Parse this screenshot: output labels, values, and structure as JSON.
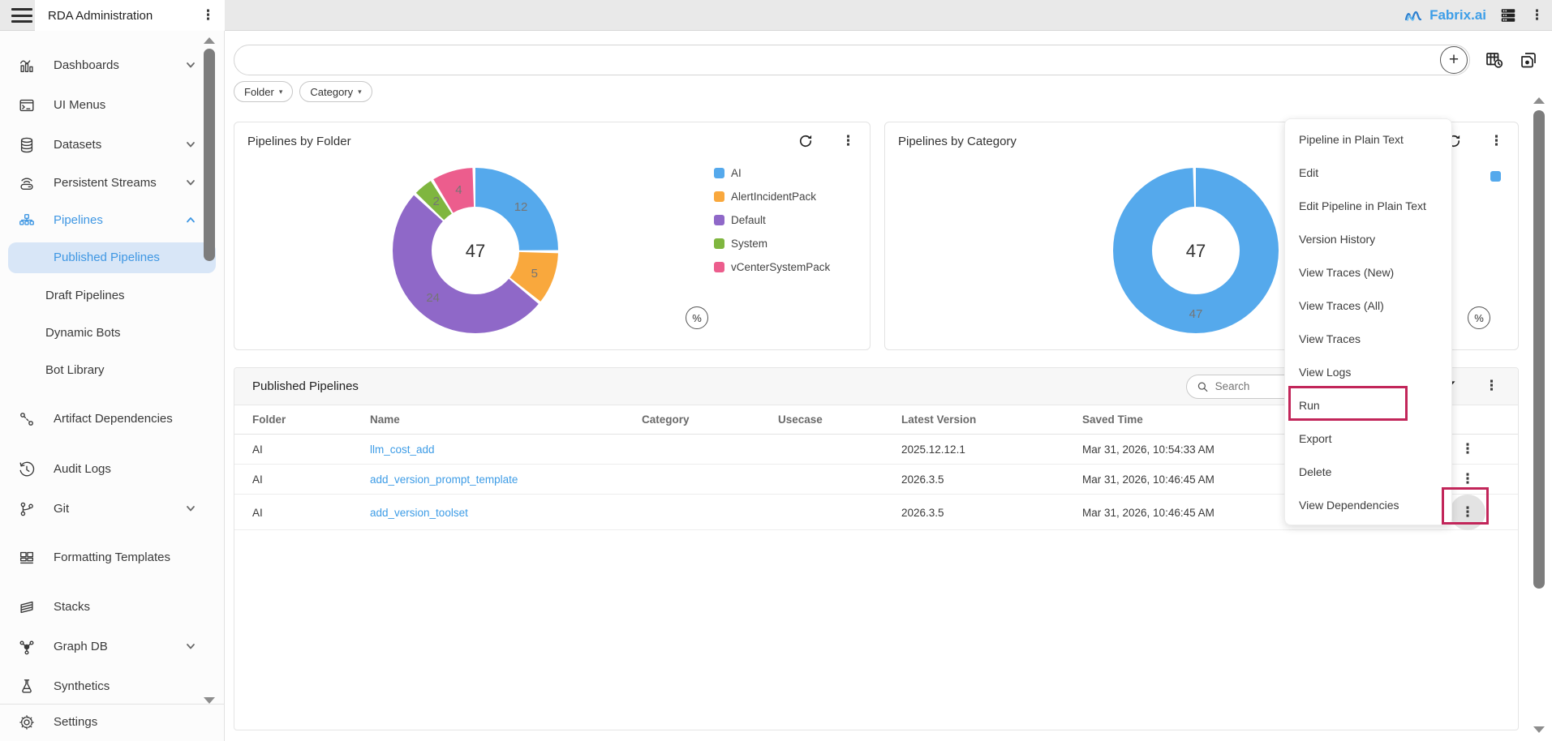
{
  "topbar": {
    "title": "RDA Administration",
    "brand": "Fabrix.ai"
  },
  "sidebar": {
    "items": [
      {
        "label": "Dashboards",
        "chevron": "down"
      },
      {
        "label": "UI Menus"
      },
      {
        "label": "Datasets",
        "chevron": "down"
      },
      {
        "label": "Persistent Streams",
        "chevron": "down"
      },
      {
        "label": "Pipelines",
        "chevron": "up",
        "expanded": true
      },
      {
        "label": "Published Pipelines",
        "child": true,
        "active": true
      },
      {
        "label": "Draft Pipelines",
        "child": true
      },
      {
        "label": "Dynamic Bots",
        "child": true
      },
      {
        "label": "Bot Library",
        "child": true
      },
      {
        "label": "Artifact Dependencies"
      },
      {
        "label": "Audit Logs"
      },
      {
        "label": "Git",
        "chevron": "down"
      },
      {
        "label": "Formatting Templates"
      },
      {
        "label": "Stacks"
      },
      {
        "label": "Graph DB",
        "chevron": "down"
      },
      {
        "label": "Synthetics"
      },
      {
        "label": "Settings"
      }
    ]
  },
  "search": {
    "value": "",
    "placeholder": "",
    "add_button": "+"
  },
  "filters": {
    "chips": [
      "Folder",
      "Category"
    ]
  },
  "chart_data": [
    {
      "type": "donut",
      "title": "Pipelines by Folder",
      "total": 47,
      "center_label": "47",
      "legend_position": "right",
      "unit_toggle": "%",
      "segments": [
        {
          "label": "AI",
          "value": 12,
          "color": "#55a9ec"
        },
        {
          "label": "AlertIncidentPack",
          "value": 5,
          "color": "#f9a83d"
        },
        {
          "label": "Default",
          "value": 24,
          "color": "#8f68c8"
        },
        {
          "label": "System",
          "value": 2,
          "color": "#7fb63f"
        },
        {
          "label": "vCenterSystemPack",
          "value": 4,
          "color": "#ec5d8d"
        }
      ]
    },
    {
      "type": "donut",
      "title": "Pipelines by Category",
      "total": 47,
      "center_label": "47",
      "legend_position": "right",
      "unit_toggle": "%",
      "segments": [
        {
          "label": "",
          "value": 47,
          "color": "#55a9ec"
        }
      ]
    }
  ],
  "table": {
    "title": "Published Pipelines",
    "search_placeholder": "Search",
    "columns": [
      "Folder",
      "Name",
      "Category",
      "Usecase",
      "Latest Version",
      "Saved Time"
    ],
    "rows": [
      {
        "folder": "AI",
        "name": "llm_cost_add",
        "category": "",
        "usecase": "",
        "latest_version": "2025.12.12.1",
        "saved_time": "Mar 31, 2026, 10:54:33 AM"
      },
      {
        "folder": "AI",
        "name": "add_version_prompt_template",
        "category": "",
        "usecase": "",
        "latest_version": "2026.3.5",
        "saved_time": "Mar 31, 2026, 10:46:45 AM"
      },
      {
        "folder": "AI",
        "name": "add_version_toolset",
        "category": "",
        "usecase": "",
        "latest_version": "2026.3.5",
        "saved_time": "Mar 31, 2026, 10:46:45 AM"
      }
    ]
  },
  "context_menu": {
    "items": [
      "Pipeline in Plain Text",
      "Edit",
      "Edit Pipeline in Plain Text",
      "Version History",
      "View Traces (New)",
      "View Traces (All)",
      "View Traces",
      "View Logs",
      "Run",
      "Export",
      "Delete",
      "View Dependencies"
    ],
    "highlighted_item": "Run"
  },
  "colors": {
    "accent": "#3f97e3",
    "link": "#3d9ce6",
    "annotation": "#c2265a",
    "brand": "#3d9ee8"
  }
}
